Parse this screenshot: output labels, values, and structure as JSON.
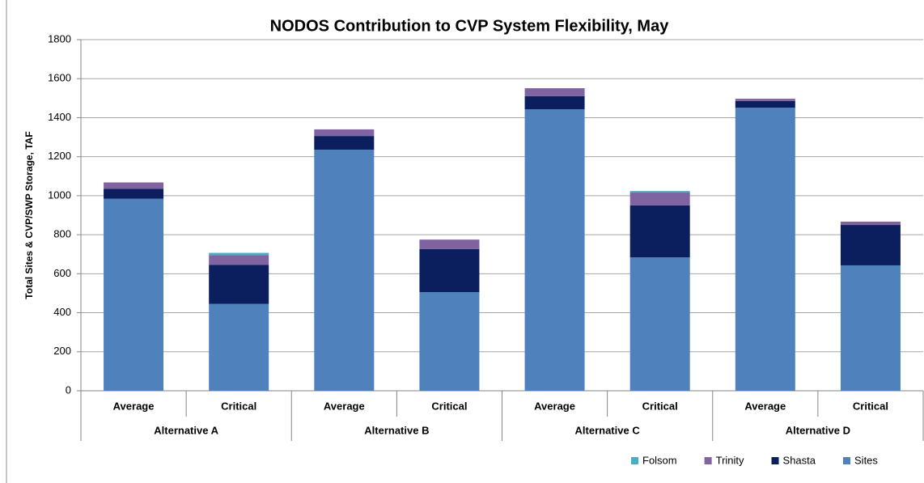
{
  "chart_data": {
    "type": "stacked_bar",
    "title": "NODOS Contribution to CVP System Flexibility, May",
    "y_label": "Total Sites & CVP/SWP Storage, TAF",
    "categories": [
      "Average",
      "Critical",
      "Average",
      "Critical",
      "Average",
      "Critical",
      "Average",
      "Critical"
    ],
    "groups": [
      "Alternative A",
      "Alternative B",
      "Alternative C",
      "Alternative D"
    ],
    "series": [
      {
        "name": "Sites",
        "color": "#4f81bd",
        "values": [
          985,
          445,
          1236,
          506,
          1443,
          684,
          1451,
          643
        ]
      },
      {
        "name": "Shasta",
        "color": "#0b1f5e",
        "values": [
          50,
          200,
          70,
          220,
          67,
          266,
          34,
          207
        ]
      },
      {
        "name": "Trinity",
        "color": "#8064a2",
        "values": [
          33,
          50,
          34,
          49,
          41,
          66,
          12,
          17
        ]
      },
      {
        "name": "Folsom",
        "color": "#4bacc6",
        "values": [
          0,
          12,
          0,
          0,
          0,
          8,
          0,
          0
        ]
      }
    ],
    "ylim": [
      0,
      1800
    ],
    "yticks": [
      0,
      200,
      400,
      600,
      800,
      1000,
      1200,
      1400,
      1600,
      1800
    ],
    "grid": true
  }
}
